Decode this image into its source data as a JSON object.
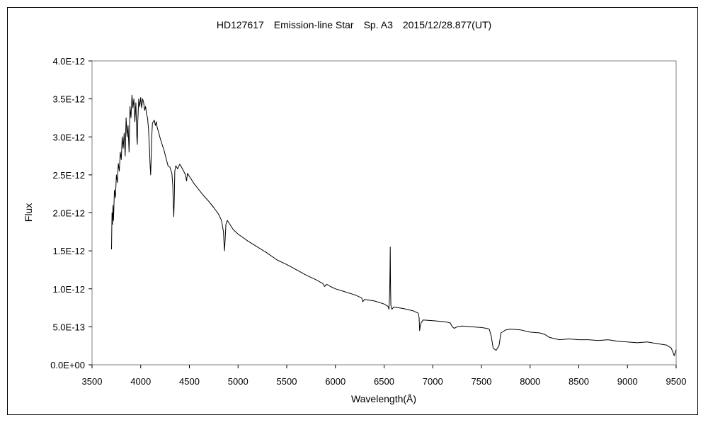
{
  "chart_data": {
    "type": "line",
    "title": "HD127617　Emission-line Star　Sp. A3　2015/12/28.877(UT)",
    "xlabel": "Wavelength(Å)",
    "ylabel": "Flux",
    "xlim": [
      3500,
      9500
    ],
    "ylim": [
      0,
      4e-12
    ],
    "x_ticks": [
      3500,
      4000,
      4500,
      5000,
      5500,
      6000,
      6500,
      7000,
      7500,
      8000,
      8500,
      9000,
      9500
    ],
    "x_tick_labels": [
      "3500",
      "4000",
      "4500",
      "5000",
      "5500",
      "6000",
      "6500",
      "7000",
      "7500",
      "8000",
      "8500",
      "9000",
      "9500"
    ],
    "y_ticks": [
      0,
      5e-13,
      1e-12,
      1.5e-12,
      2e-12,
      2.5e-12,
      3e-12,
      3.5e-12,
      4e-12
    ],
    "y_tick_labels": [
      "0.0E+00",
      "5.0E-13",
      "1.0E-12",
      "1.5E-12",
      "2.0E-12",
      "2.5E-12",
      "3.0E-12",
      "3.5E-12",
      "4.0E-12"
    ],
    "grid": false,
    "legend": "none",
    "line_color": "#000000",
    "series": [
      {
        "x": [
          3700,
          3705,
          3710,
          3715,
          3720,
          3730,
          3740,
          3750,
          3760,
          3770,
          3780,
          3790,
          3800,
          3810,
          3820,
          3830,
          3840,
          3850,
          3860,
          3870,
          3880,
          3890,
          3900,
          3910,
          3920,
          3930,
          3940,
          3950,
          3960,
          3965,
          3970,
          3980,
          3990,
          4000,
          4010,
          4020,
          4030,
          4040,
          4050,
          4060,
          4070,
          4080,
          4090,
          4096,
          4102,
          4108,
          4115,
          4120,
          4130,
          4140,
          4150,
          4160,
          4170,
          4180,
          4200,
          4220,
          4240,
          4260,
          4280,
          4300,
          4320,
          4330,
          4335,
          4340,
          4345,
          4350,
          4360,
          4380,
          4400,
          4420,
          4440,
          4460,
          4471,
          4480,
          4500,
          4550,
          4600,
          4650,
          4700,
          4750,
          4800,
          4830,
          4850,
          4855,
          4861,
          4867,
          4875,
          4890,
          4900,
          4950,
          5000,
          5100,
          5200,
          5300,
          5400,
          5500,
          5600,
          5700,
          5800,
          5870,
          5890,
          5910,
          5950,
          6000,
          6100,
          6200,
          6270,
          6280,
          6300,
          6400,
          6500,
          6540,
          6550,
          6556,
          6560,
          6563,
          6566,
          6570,
          6580,
          6600,
          6700,
          6800,
          6850,
          6860,
          6865,
          6870,
          6880,
          6900,
          7000,
          7100,
          7150,
          7180,
          7200,
          7220,
          7250,
          7300,
          7400,
          7500,
          7550,
          7580,
          7600,
          7620,
          7650,
          7680,
          7700,
          7750,
          7800,
          7900,
          8000,
          8100,
          8150,
          8200,
          8300,
          8400,
          8500,
          8600,
          8700,
          8800,
          8900,
          9000,
          9100,
          9200,
          9300,
          9400,
          9450,
          9480,
          9500
        ],
        "y": [
          1.52e-12,
          2e-12,
          1.85e-12,
          2.1e-12,
          1.9e-12,
          2.3e-12,
          2.2e-12,
          2.5e-12,
          2.4e-12,
          2.65e-12,
          2.55e-12,
          2.8e-12,
          2.7e-12,
          3e-12,
          2.85e-12,
          3.05e-12,
          2.75e-12,
          3.25e-12,
          3e-12,
          3.15e-12,
          2.8e-12,
          3.4e-12,
          3.25e-12,
          3.55e-12,
          3.38e-12,
          3.5e-12,
          3.2e-12,
          3.45e-12,
          3e-12,
          2.9e-12,
          3.2e-12,
          3.5e-12,
          3.4e-12,
          3.52e-12,
          3.38e-12,
          3.5e-12,
          3.45e-12,
          3.35e-12,
          3.4e-12,
          3.3e-12,
          3.25e-12,
          3.1e-12,
          2.85e-12,
          2.65e-12,
          2.5e-12,
          2.75e-12,
          3.05e-12,
          3.18e-12,
          3.2e-12,
          3.22e-12,
          3.15e-12,
          3.2e-12,
          3.12e-12,
          3.08e-12,
          2.98e-12,
          2.9e-12,
          2.82e-12,
          2.72e-12,
          2.62e-12,
          2.6e-12,
          2.52e-12,
          2.35e-12,
          2.1e-12,
          1.95e-12,
          2.2e-12,
          2.55e-12,
          2.62e-12,
          2.58e-12,
          2.64e-12,
          2.6e-12,
          2.55e-12,
          2.5e-12,
          2.42e-12,
          2.52e-12,
          2.48e-12,
          2.38e-12,
          2.3e-12,
          2.22e-12,
          2.15e-12,
          2.07e-12,
          1.98e-12,
          1.9e-12,
          1.75e-12,
          1.62e-12,
          1.5e-12,
          1.65e-12,
          1.85e-12,
          1.9e-12,
          1.88e-12,
          1.78e-12,
          1.72e-12,
          1.63e-12,
          1.55e-12,
          1.47e-12,
          1.38e-12,
          1.32e-12,
          1.25e-12,
          1.18e-12,
          1.12e-12,
          1.07e-12,
          1.03e-12,
          1.06e-12,
          1.03e-12,
          1e-12,
          9.6e-13,
          9.2e-13,
          8.8e-13,
          8.3e-13,
          8.6e-13,
          8.4e-13,
          8e-13,
          7.7e-13,
          7.3e-13,
          9e-13,
          1.2e-12,
          1.55e-12,
          1.05e-12,
          7.8e-13,
          7.3e-13,
          7.6e-13,
          7.4e-13,
          7.1e-13,
          6.8e-13,
          6.2e-13,
          4.5e-13,
          5e-13,
          5.5e-13,
          5.9e-13,
          5.8e-13,
          5.7e-13,
          5.6e-13,
          5.5e-13,
          5e-13,
          4.8e-13,
          5e-13,
          5.1e-13,
          5e-13,
          4.9e-13,
          4.8e-13,
          4.7e-13,
          3.8e-13,
          2.2e-13,
          1.9e-13,
          2.5e-13,
          4.2e-13,
          4.6e-13,
          4.7e-13,
          4.6e-13,
          4.3e-13,
          4.2e-13,
          4e-13,
          3.6e-13,
          3.3e-13,
          3.4e-13,
          3.3e-13,
          3.3e-13,
          3.2e-13,
          3.3e-13,
          3.1e-13,
          3e-13,
          2.9e-13,
          3e-13,
          2.8e-13,
          2.6e-13,
          2.2e-13,
          1.2e-13,
          2e-13
        ]
      }
    ]
  }
}
